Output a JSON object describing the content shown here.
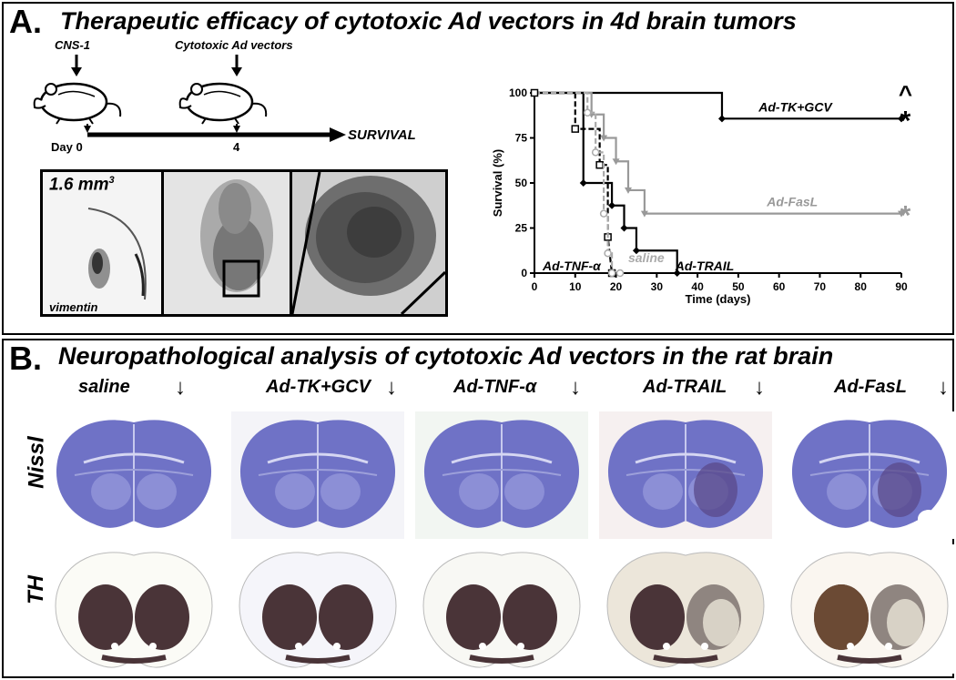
{
  "panel_a": {
    "label": "A.",
    "title": "Therapeutic efficacy of cytotoxic Ad vectors in 4d brain tumors",
    "timeline": {
      "event1": "CNS-1",
      "event2": "Cytotoxic Ad vectors",
      "day0": "Day 0",
      "day4": "4",
      "end": "SURVIVAL"
    },
    "micro": {
      "volume": "1.6 mm",
      "volume_sup": "3",
      "stain": "vimentin"
    }
  },
  "chart_data": {
    "type": "line",
    "xlabel": "Time (days)",
    "ylabel": "Survival (%)",
    "xlim": [
      0,
      90
    ],
    "ylim": [
      0,
      100
    ],
    "xticks": [
      "0",
      "10",
      "20",
      "30",
      "40",
      "50",
      "60",
      "70",
      "80",
      "90"
    ],
    "yticks": [
      "0",
      "25",
      "50",
      "75",
      "100"
    ],
    "grid": false,
    "series": [
      {
        "name": "Ad-TK+GCV",
        "color": "#000000",
        "dash": "solid",
        "marker": "diamond",
        "x": [
          0,
          46,
          46,
          90
        ],
        "y": [
          100,
          100,
          85.7,
          85.7
        ]
      },
      {
        "name": "Ad-FasL",
        "color": "#999999",
        "dash": "solid",
        "marker": "triangle",
        "x": [
          0,
          14,
          14,
          17,
          17,
          20,
          20,
          23,
          23,
          27,
          27,
          90
        ],
        "y": [
          100,
          100,
          88,
          88,
          75,
          75,
          62,
          62,
          46,
          46,
          33,
          33
        ]
      },
      {
        "name": "Ad-TRAIL",
        "color": "#000000",
        "dash": "solid",
        "marker": "diamond",
        "x": [
          0,
          12,
          12,
          19,
          19,
          22,
          22,
          25,
          25,
          35,
          35
        ],
        "y": [
          100,
          100,
          50,
          50,
          37.5,
          37.5,
          25,
          25,
          12.5,
          12.5,
          0
        ]
      },
      {
        "name": "Ad-TNF-α",
        "color": "#000000",
        "dash": "dashed",
        "marker": "square",
        "x": [
          0,
          10,
          10,
          16,
          16,
          18,
          18,
          19
        ],
        "y": [
          100,
          100,
          80,
          80,
          60,
          60,
          20,
          0
        ]
      },
      {
        "name": "saline",
        "color": "#aaaaaa",
        "dash": "dashed",
        "marker": "circle",
        "x": [
          0,
          13,
          13,
          15,
          15,
          17,
          17,
          18,
          18,
          19,
          19,
          21
        ],
        "y": [
          100,
          100,
          89,
          89,
          67,
          67,
          33,
          33,
          11,
          11,
          0,
          0
        ]
      }
    ],
    "annotations": {
      "tk_mark_top": "^",
      "tk_mark": "*",
      "fasl_mark": "*"
    }
  },
  "panel_b": {
    "label": "B.",
    "title": "Neuropathological analysis of cytotoxic Ad vectors in the rat brain",
    "columns": [
      "saline",
      "Ad-TK+GCV",
      "Ad-TNF-α",
      "Ad-TRAIL",
      "Ad-FasL"
    ],
    "rows": [
      "Nissl",
      "TH"
    ],
    "arrow": "↓"
  },
  "colors": {
    "nissl": "#6f72c6",
    "th": "#4a3438",
    "grey_series": "#999999"
  }
}
